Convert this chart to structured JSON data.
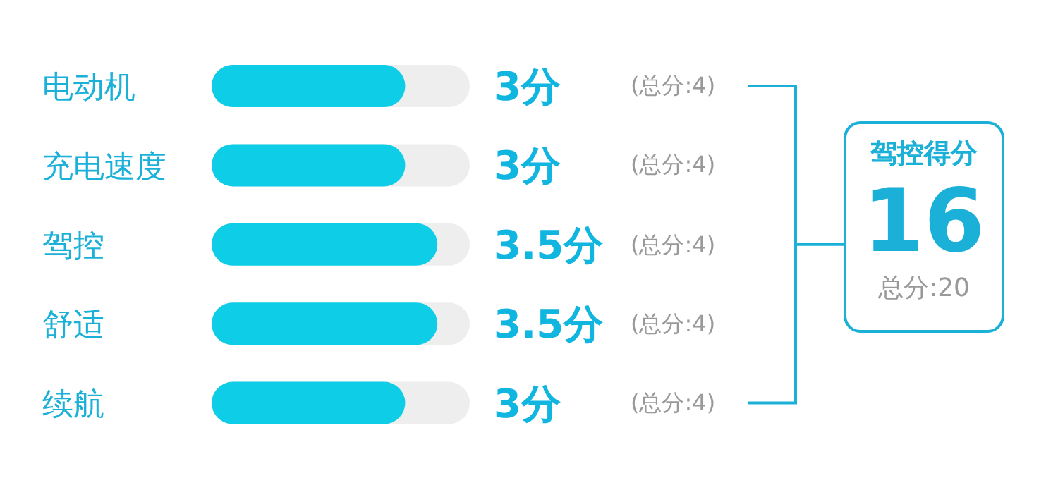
{
  "chart_data": {
    "type": "bar",
    "orientation": "horizontal",
    "categories": [
      "电动机",
      "充电速度",
      "驾控",
      "舒适",
      "续航"
    ],
    "series": [
      {
        "color": "#0ecde6",
        "values": [
          3,
          3,
          3.5,
          3.5,
          3
        ],
        "value_labels": [
          "3分",
          "3分",
          "3.5分",
          "3.5分",
          "3分"
        ]
      }
    ],
    "xlim": [
      0,
      4
    ],
    "tick_labels": "y",
    "annotations": [
      "(总分:4)",
      "(总分:4)",
      "(总分:4)",
      "(总分:4)",
      "(总分:4)",
      "驾控得分",
      "16",
      "总分:20"
    ]
  }
}
